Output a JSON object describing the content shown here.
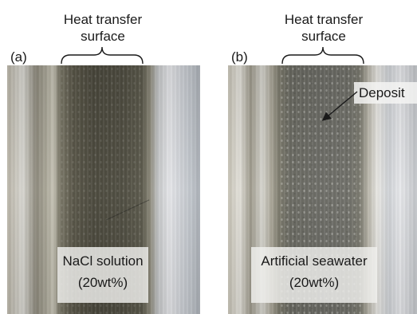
{
  "panels": [
    {
      "letter": "(a)",
      "heading_line1": "Heat transfer",
      "heading_line2": "surface",
      "caption_line1": "NaCl solution",
      "caption_line2": "(20wt%)"
    },
    {
      "letter": "(b)",
      "heading_line1": "Heat transfer",
      "heading_line2": "surface",
      "caption_line1": "Artificial seawater",
      "caption_line2": "(20wt%)",
      "annotation": "Deposit"
    }
  ],
  "colors": {
    "text": "#1a1a1a",
    "caption_background": "#f0f0ee"
  }
}
